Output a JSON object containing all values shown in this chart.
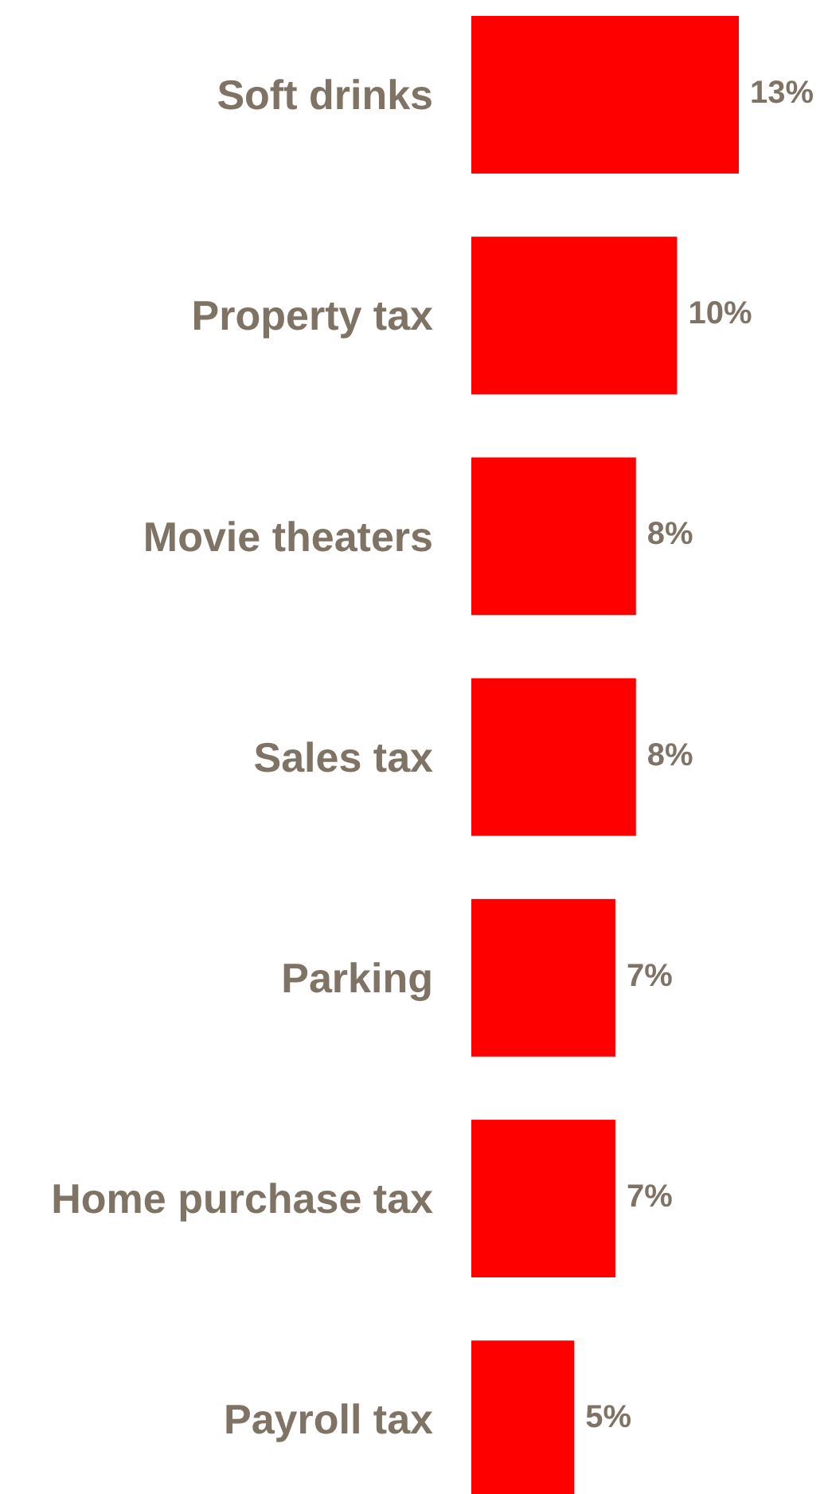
{
  "chart_data": {
    "type": "bar",
    "orientation": "horizontal",
    "categories": [
      "Soft drinks",
      "Property tax",
      "Movie theaters",
      "Sales tax",
      "Parking",
      "Home purchase tax",
      "Payroll tax"
    ],
    "values": [
      13,
      10,
      8,
      8,
      7,
      7,
      5
    ],
    "value_labels": [
      "13%",
      "10%",
      "8%",
      "8%",
      "7%",
      "7%",
      "5%"
    ],
    "color": "#ff0000"
  }
}
